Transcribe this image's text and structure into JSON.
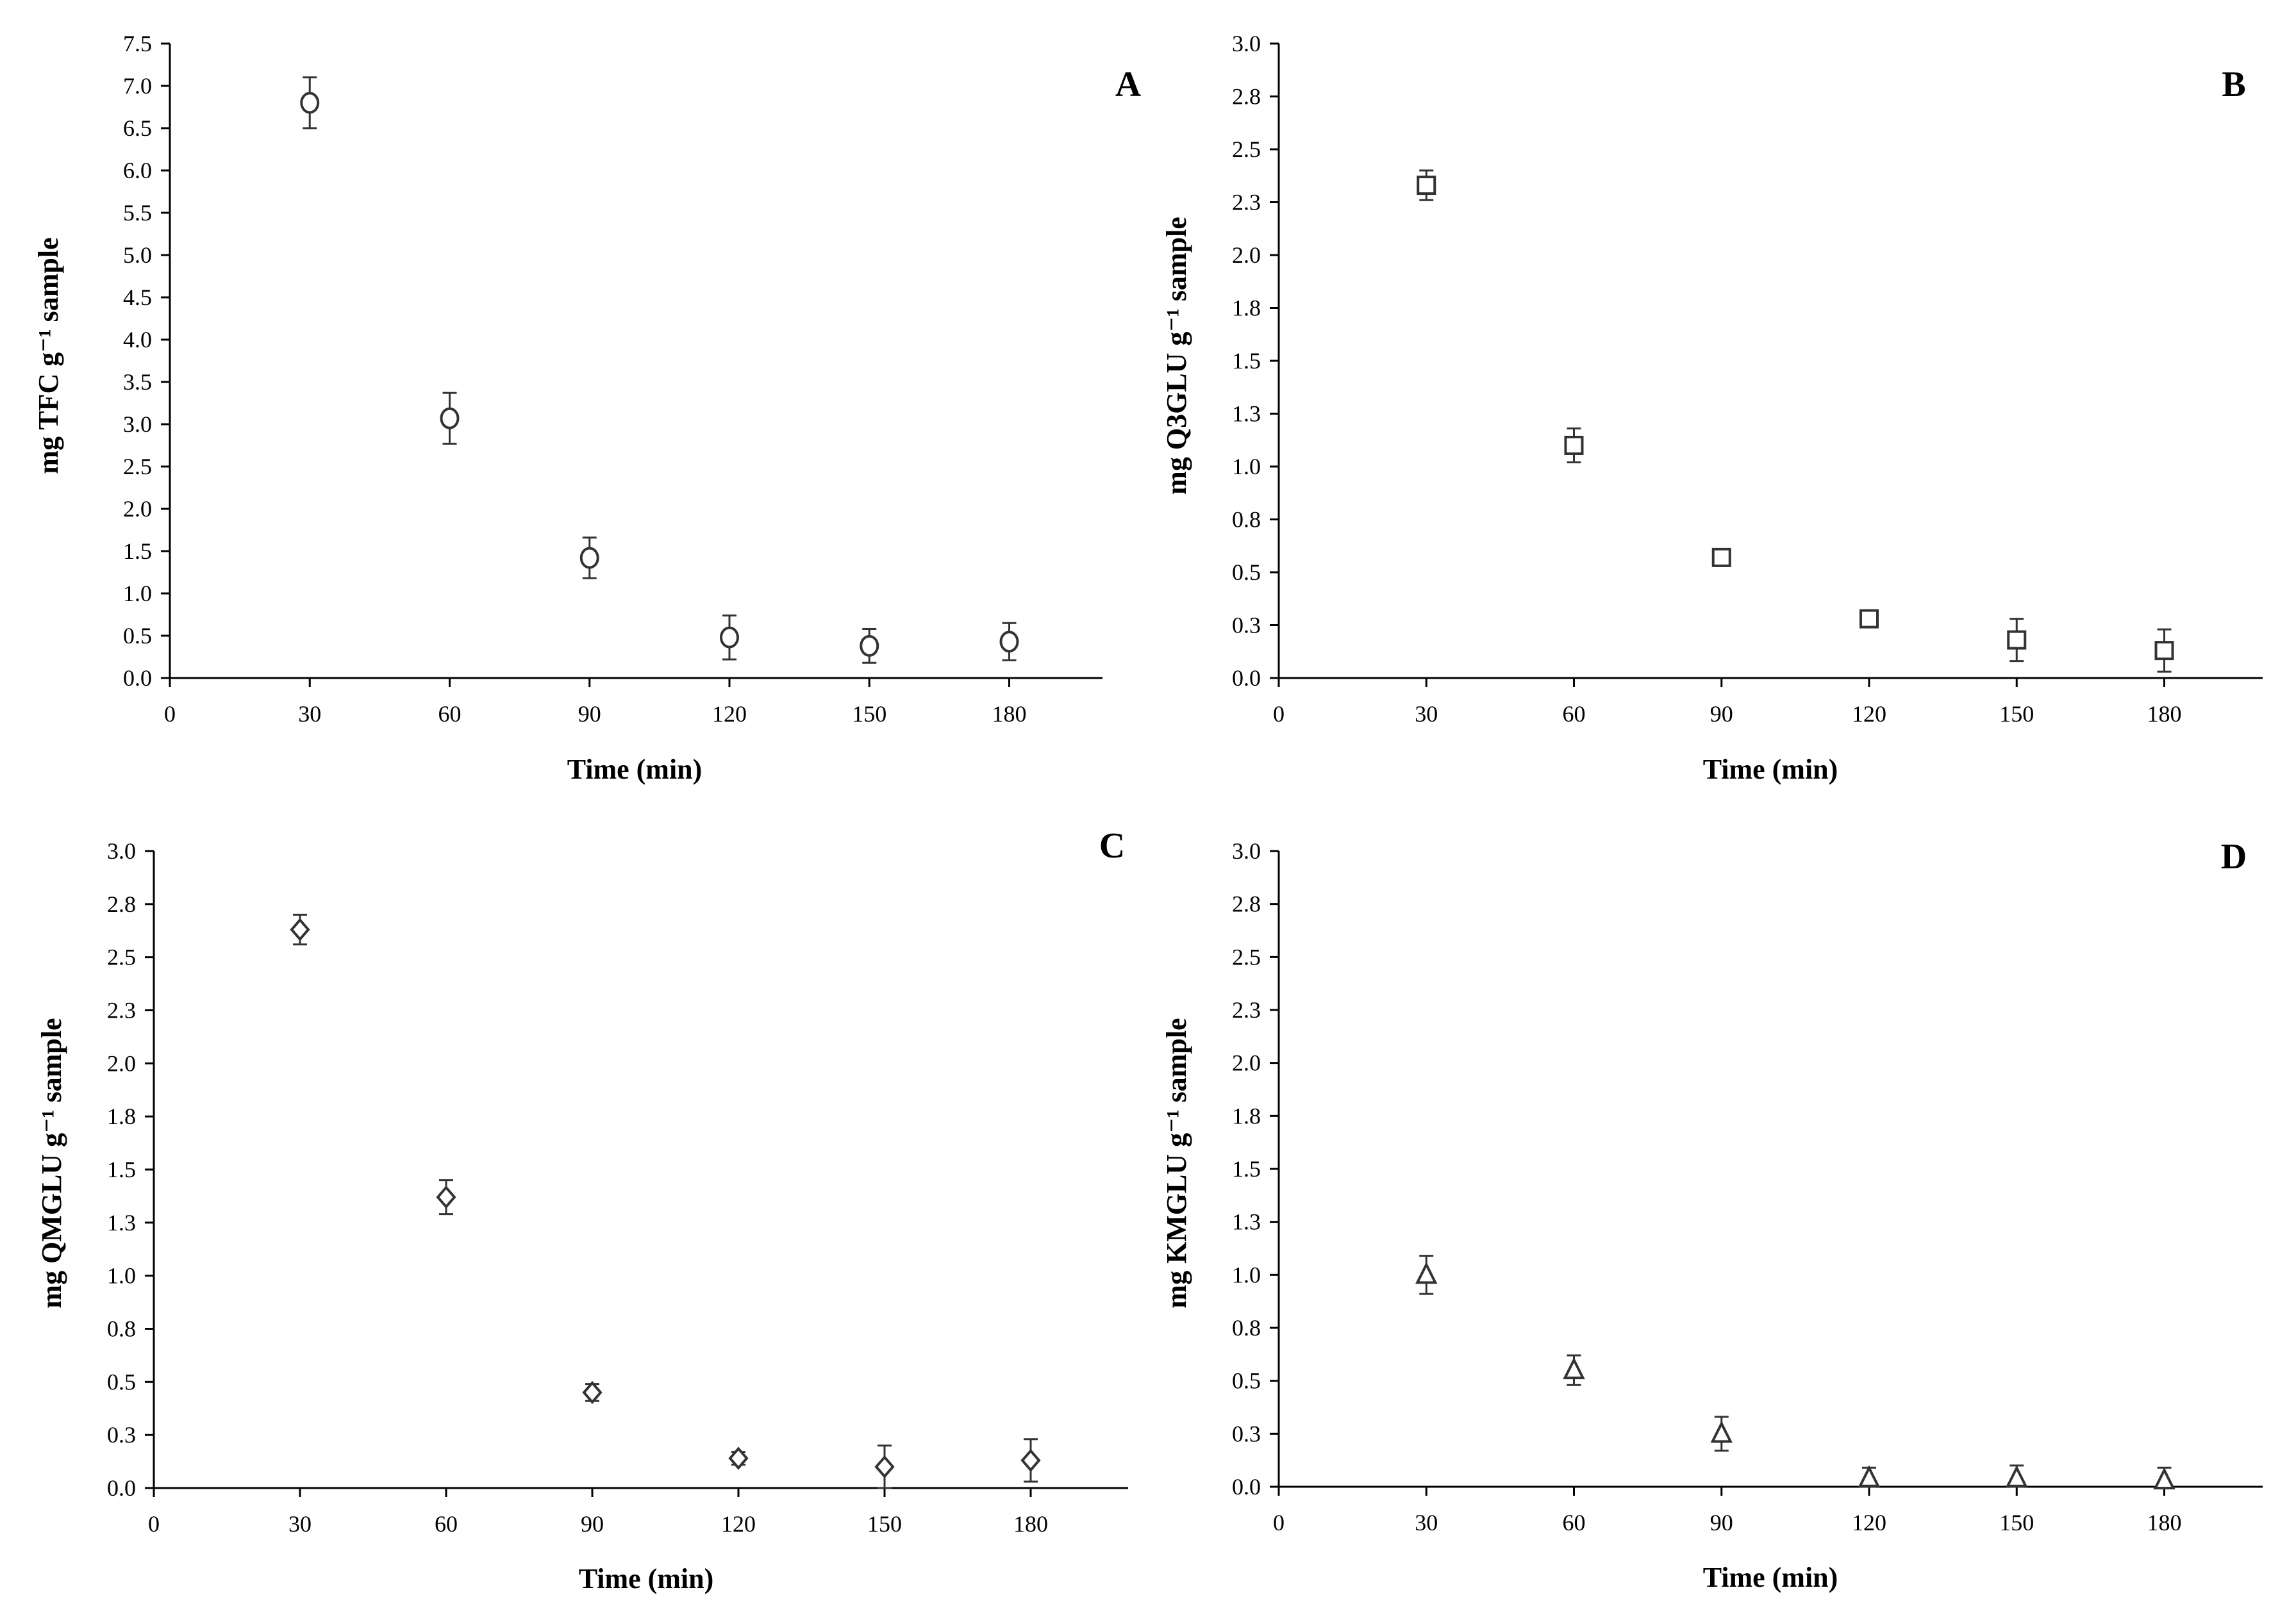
{
  "figure": {
    "panels": [
      "A",
      "B",
      "C",
      "D"
    ]
  },
  "chart_data": [
    {
      "id": "A",
      "type": "scatter",
      "title": "",
      "panel_label": "A",
      "xlabel": "Time (min)",
      "ylabel": "mg TFC g⁻¹ sample",
      "xlim": [
        0,
        200
      ],
      "ylim": [
        0,
        7.5
      ],
      "xticks": [
        "0",
        "30",
        "60",
        "90",
        "120",
        "150",
        "180"
      ],
      "xtick_values": [
        0,
        30,
        60,
        90,
        120,
        150,
        180
      ],
      "yticks": [
        "0.0",
        "0.5",
        "1.0",
        "1.5",
        "2.0",
        "2.5",
        "3.0",
        "3.5",
        "4.0",
        "4.5",
        "5.0",
        "5.5",
        "6.0",
        "6.5",
        "7.0",
        "7.5"
      ],
      "ytick_values": [
        0,
        0.5,
        1,
        1.5,
        2,
        2.5,
        3,
        3.5,
        4,
        4.5,
        5,
        5.5,
        6,
        6.5,
        7,
        7.5
      ],
      "marker": "circle",
      "grid": false,
      "x": [
        30,
        60,
        90,
        120,
        150,
        180
      ],
      "y": [
        6.8,
        3.07,
        1.42,
        0.48,
        0.38,
        0.43
      ],
      "err": [
        0.3,
        0.3,
        0.24,
        0.26,
        0.2,
        0.22
      ]
    },
    {
      "id": "B",
      "type": "scatter",
      "title": "",
      "panel_label": "B",
      "xlabel": "Time (min)",
      "ylabel": "mg Q3GLU g⁻¹ sample",
      "xlim": [
        0,
        200
      ],
      "ylim": [
        0,
        3.0
      ],
      "xticks": [
        "0",
        "30",
        "60",
        "90",
        "120",
        "150",
        "180"
      ],
      "xtick_values": [
        0,
        30,
        60,
        90,
        120,
        150,
        180
      ],
      "yticks": [
        "0.0",
        "0.3",
        "0.5",
        "0.8",
        "1.0",
        "1.3",
        "1.5",
        "1.8",
        "2.0",
        "2.3",
        "2.5",
        "2.8",
        "3.0"
      ],
      "ytick_values": [
        0,
        0.25,
        0.5,
        0.75,
        1,
        1.25,
        1.5,
        1.75,
        2,
        2.25,
        2.5,
        2.75,
        3
      ],
      "marker": "square",
      "grid": false,
      "x": [
        30,
        60,
        90,
        120,
        150,
        180
      ],
      "y": [
        2.33,
        1.1,
        0.57,
        0.28,
        0.18,
        0.13
      ],
      "err": [
        0.07,
        0.08,
        0.04,
        0.03,
        0.1,
        0.1
      ]
    },
    {
      "id": "C",
      "type": "scatter",
      "title": "",
      "panel_label": "C",
      "xlabel": "Time (min)",
      "ylabel": "mg QMGLU g⁻¹ sample",
      "xlim": [
        0,
        200
      ],
      "ylim": [
        0,
        3.0
      ],
      "xticks": [
        "0",
        "30",
        "60",
        "90",
        "120",
        "150",
        "180"
      ],
      "xtick_values": [
        0,
        30,
        60,
        90,
        120,
        150,
        180
      ],
      "yticks": [
        "0.0",
        "0.3",
        "0.5",
        "0.8",
        "1.0",
        "1.3",
        "1.5",
        "1.8",
        "2.0",
        "2.3",
        "2.5",
        "2.8",
        "3.0"
      ],
      "ytick_values": [
        0,
        0.25,
        0.5,
        0.75,
        1,
        1.25,
        1.5,
        1.75,
        2,
        2.25,
        2.5,
        2.75,
        3
      ],
      "marker": "diamond",
      "grid": false,
      "x": [
        30,
        60,
        90,
        120,
        150,
        180
      ],
      "y": [
        2.63,
        1.37,
        0.45,
        0.14,
        0.1,
        0.13
      ],
      "err": [
        0.07,
        0.08,
        0.04,
        0.03,
        0.1,
        0.1
      ]
    },
    {
      "id": "D",
      "type": "scatter",
      "title": "",
      "panel_label": "D",
      "xlabel": "Time (min)",
      "ylabel": "mg KMGLU g⁻¹ sample",
      "xlim": [
        0,
        200
      ],
      "ylim": [
        0,
        3.0
      ],
      "xticks": [
        "0",
        "30",
        "60",
        "90",
        "120",
        "150",
        "180"
      ],
      "xtick_values": [
        0,
        30,
        60,
        90,
        120,
        150,
        180
      ],
      "yticks": [
        "0.0",
        "0.3",
        "0.5",
        "0.8",
        "1.0",
        "1.3",
        "1.5",
        "1.8",
        "2.0",
        "2.3",
        "2.5",
        "2.8",
        "3.0"
      ],
      "ytick_values": [
        0,
        0.25,
        0.5,
        0.75,
        1,
        1.25,
        1.5,
        1.75,
        2,
        2.25,
        2.5,
        2.75,
        3
      ],
      "marker": "triangle",
      "grid": false,
      "x": [
        30,
        60,
        90,
        120,
        150,
        180
      ],
      "y": [
        1.0,
        0.55,
        0.25,
        0.04,
        0.04,
        0.03
      ],
      "err": [
        0.09,
        0.07,
        0.08,
        0.05,
        0.06,
        0.06
      ]
    }
  ]
}
